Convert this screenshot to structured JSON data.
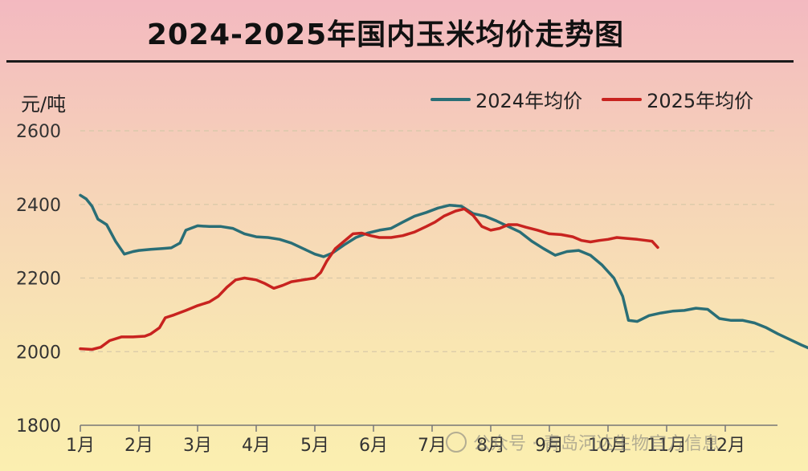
{
  "chart_data": {
    "type": "line",
    "title": "2024-2025年国内玉米均价走势图",
    "ylabel": "元/吨",
    "xlabel": "",
    "ylim": [
      1800,
      2600
    ],
    "yticks": [
      "1800",
      "2000",
      "2200",
      "2400",
      "2600"
    ],
    "categories": [
      "1月",
      "2月",
      "3月",
      "4月",
      "5月",
      "6月",
      "7月",
      "8月",
      "9月",
      "10月",
      "11月",
      "12月"
    ],
    "grid": true,
    "legend_position": "top-right",
    "series": [
      {
        "name": "2024年均价",
        "color": "#2a6e76",
        "points": [
          [
            0.0,
            2425
          ],
          [
            0.1,
            2415
          ],
          [
            0.2,
            2395
          ],
          [
            0.3,
            2360
          ],
          [
            0.45,
            2345
          ],
          [
            0.6,
            2300
          ],
          [
            0.75,
            2265
          ],
          [
            0.9,
            2272
          ],
          [
            1.0,
            2275
          ],
          [
            1.2,
            2278
          ],
          [
            1.4,
            2280
          ],
          [
            1.55,
            2282
          ],
          [
            1.7,
            2295
          ],
          [
            1.8,
            2330
          ],
          [
            2.0,
            2342
          ],
          [
            2.2,
            2340
          ],
          [
            2.4,
            2340
          ],
          [
            2.6,
            2335
          ],
          [
            2.8,
            2320
          ],
          [
            3.0,
            2312
          ],
          [
            3.2,
            2310
          ],
          [
            3.4,
            2305
          ],
          [
            3.6,
            2295
          ],
          [
            3.8,
            2280
          ],
          [
            4.0,
            2265
          ],
          [
            4.15,
            2258
          ],
          [
            4.3,
            2268
          ],
          [
            4.5,
            2290
          ],
          [
            4.7,
            2310
          ],
          [
            4.9,
            2322
          ],
          [
            5.1,
            2330
          ],
          [
            5.3,
            2335
          ],
          [
            5.5,
            2352
          ],
          [
            5.7,
            2368
          ],
          [
            5.9,
            2378
          ],
          [
            6.1,
            2390
          ],
          [
            6.3,
            2398
          ],
          [
            6.5,
            2395
          ],
          [
            6.7,
            2375
          ],
          [
            6.9,
            2368
          ],
          [
            7.1,
            2355
          ],
          [
            7.3,
            2340
          ],
          [
            7.5,
            2325
          ],
          [
            7.7,
            2300
          ],
          [
            7.9,
            2280
          ],
          [
            8.1,
            2262
          ],
          [
            8.3,
            2272
          ],
          [
            8.5,
            2275
          ],
          [
            8.7,
            2262
          ],
          [
            8.9,
            2235
          ],
          [
            9.1,
            2200
          ],
          [
            9.25,
            2150
          ],
          [
            9.35,
            2085
          ],
          [
            9.5,
            2082
          ],
          [
            9.7,
            2098
          ],
          [
            9.9,
            2105
          ],
          [
            10.1,
            2110
          ],
          [
            10.3,
            2112
          ],
          [
            10.5,
            2118
          ],
          [
            10.7,
            2115
          ],
          [
            10.9,
            2090
          ],
          [
            11.1,
            2085
          ],
          [
            11.3,
            2085
          ],
          [
            11.5,
            2078
          ],
          [
            11.7,
            2065
          ],
          [
            11.9,
            2048
          ],
          [
            12.1,
            2033
          ],
          [
            12.3,
            2018
          ],
          [
            12.45,
            2008
          ],
          [
            12.6,
            2012
          ],
          [
            12.75,
            2015
          ]
        ]
      },
      {
        "name": "2025年均价",
        "color": "#c8231f",
        "points": [
          [
            0.0,
            2008
          ],
          [
            0.2,
            2006
          ],
          [
            0.35,
            2012
          ],
          [
            0.5,
            2030
          ],
          [
            0.7,
            2040
          ],
          [
            0.9,
            2040
          ],
          [
            1.1,
            2042
          ],
          [
            1.2,
            2048
          ],
          [
            1.35,
            2065
          ],
          [
            1.45,
            2092
          ],
          [
            1.6,
            2100
          ],
          [
            1.8,
            2112
          ],
          [
            2.0,
            2125
          ],
          [
            2.2,
            2135
          ],
          [
            2.35,
            2150
          ],
          [
            2.5,
            2175
          ],
          [
            2.65,
            2195
          ],
          [
            2.8,
            2200
          ],
          [
            3.0,
            2195
          ],
          [
            3.15,
            2185
          ],
          [
            3.3,
            2172
          ],
          [
            3.45,
            2180
          ],
          [
            3.6,
            2190
          ],
          [
            3.8,
            2195
          ],
          [
            4.0,
            2200
          ],
          [
            4.1,
            2215
          ],
          [
            4.2,
            2245
          ],
          [
            4.35,
            2280
          ],
          [
            4.5,
            2300
          ],
          [
            4.65,
            2320
          ],
          [
            4.8,
            2322
          ],
          [
            4.95,
            2315
          ],
          [
            5.1,
            2310
          ],
          [
            5.3,
            2310
          ],
          [
            5.5,
            2315
          ],
          [
            5.7,
            2325
          ],
          [
            5.9,
            2340
          ],
          [
            6.05,
            2352
          ],
          [
            6.2,
            2368
          ],
          [
            6.4,
            2382
          ],
          [
            6.55,
            2388
          ],
          [
            6.7,
            2370
          ],
          [
            6.85,
            2340
          ],
          [
            7.0,
            2330
          ],
          [
            7.15,
            2335
          ],
          [
            7.3,
            2345
          ],
          [
            7.45,
            2345
          ],
          [
            7.6,
            2338
          ],
          [
            7.8,
            2330
          ],
          [
            8.0,
            2320
          ],
          [
            8.2,
            2318
          ],
          [
            8.4,
            2312
          ],
          [
            8.55,
            2302
          ],
          [
            8.7,
            2298
          ],
          [
            8.85,
            2302
          ],
          [
            9.0,
            2305
          ],
          [
            9.15,
            2310
          ],
          [
            9.3,
            2308
          ],
          [
            9.5,
            2305
          ],
          [
            9.65,
            2302
          ],
          [
            9.75,
            2300
          ],
          [
            9.85,
            2283
          ]
        ]
      }
    ]
  },
  "watermark": {
    "text": "公众号 · 青岛河达生物官方信息",
    "icon": "wechat-icon"
  },
  "colors": {
    "grid": "#d8c8a8",
    "axis": "#777777",
    "tick_text": "#333333"
  }
}
